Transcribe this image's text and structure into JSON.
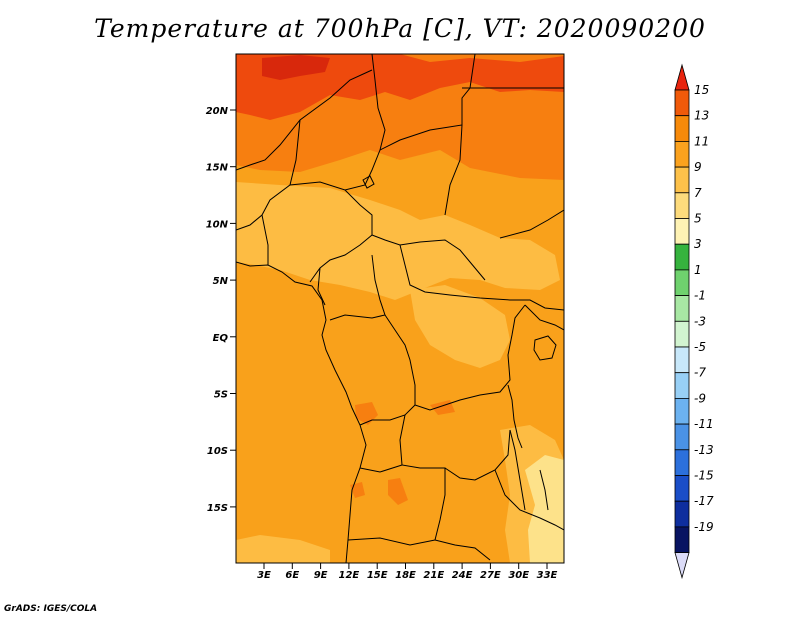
{
  "title": "Temperature at 700hPa [C], VT: 2020090200",
  "credit": "GrADS: IGES/COLA",
  "map": {
    "lat_ticks": [
      "20N",
      "15N",
      "10N",
      "5N",
      "EQ",
      "5S",
      "10S",
      "15S"
    ],
    "lon_ticks": [
      "3E",
      "6E",
      "9E",
      "12E",
      "15E",
      "18E",
      "21E",
      "24E",
      "27E",
      "30E",
      "33E"
    ]
  },
  "colorbar": {
    "levels": [
      "15",
      "13",
      "11",
      "9",
      "7",
      "5",
      "3",
      "1",
      "-1",
      "-3",
      "-5",
      "-7",
      "-9",
      "-11",
      "-13",
      "-15",
      "-17",
      "-19"
    ],
    "colors": [
      "#e8240e",
      "#f05a0a",
      "#f78a0a",
      "#fba21e",
      "#fdc14a",
      "#fddb7c",
      "#fef2b4",
      "#36b33e",
      "#6fd26e",
      "#a8e8a4",
      "#d2f4d0",
      "#c8e8fa",
      "#98d0f6",
      "#6cb2f0",
      "#4a92e6",
      "#2c70dc",
      "#1a4ec8",
      "#0e2e9e",
      "#081462",
      "#dcdcf8"
    ]
  },
  "colors": {
    "base": "#f9a11b",
    "warm": "#f77f10",
    "hot": "#ee4a0d",
    "hottest": "#d8280c",
    "cool": "#fdbc43",
    "coolest": "#fde28a"
  }
}
